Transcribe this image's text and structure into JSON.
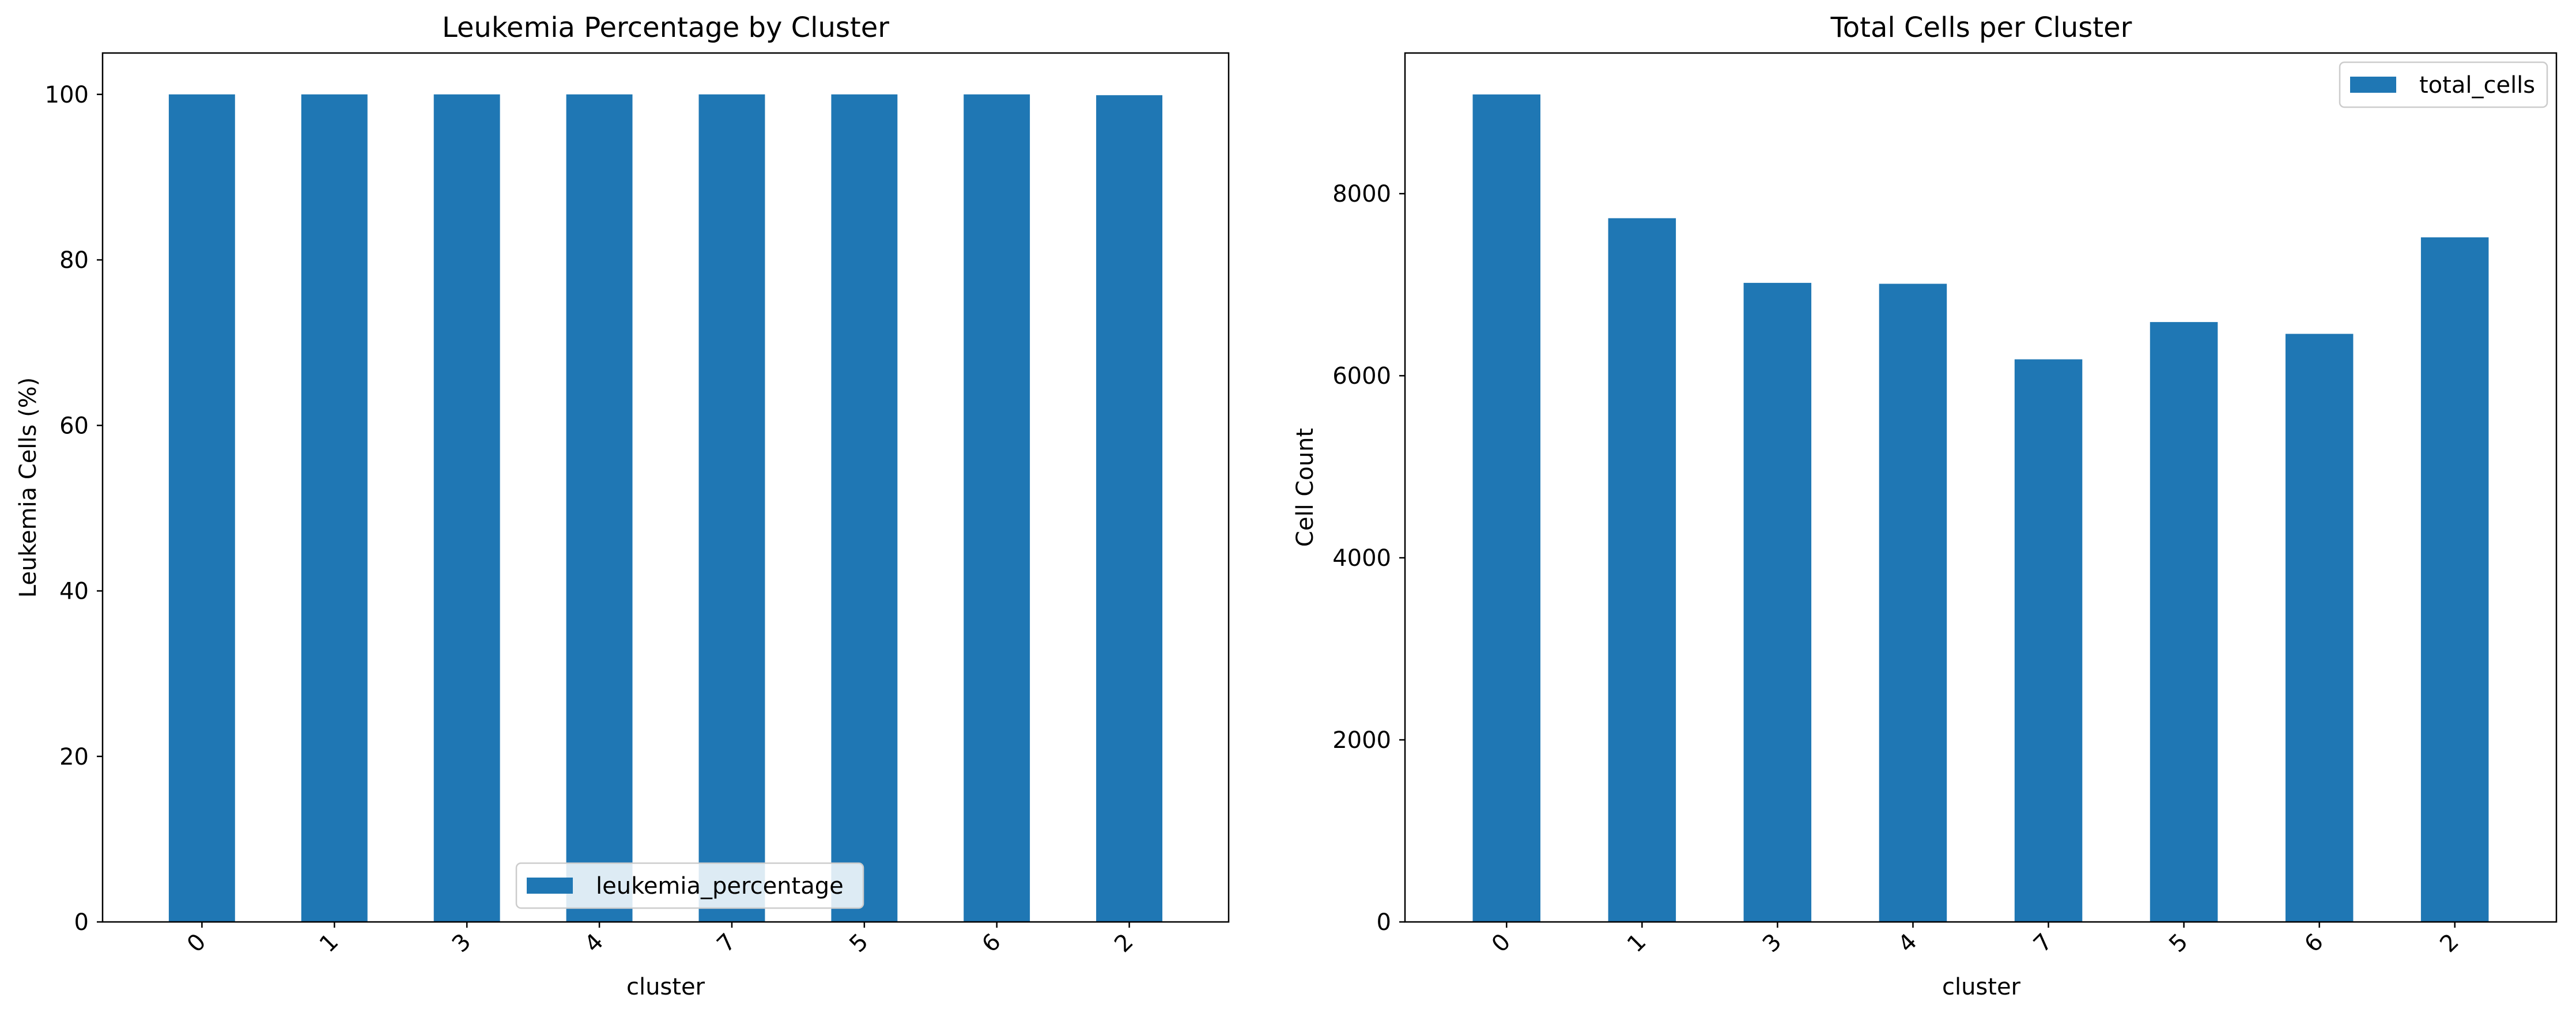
{
  "chart_data": [
    {
      "type": "bar",
      "title": "Leukemia Percentage by Cluster",
      "xlabel": "cluster",
      "ylabel": "Leukemia Cells (%)",
      "categories": [
        "0",
        "1",
        "3",
        "4",
        "7",
        "5",
        "6",
        "2"
      ],
      "series": [
        {
          "name": "leukemia_percentage",
          "values": [
            100,
            100,
            100,
            100,
            100,
            100,
            100,
            99.9
          ]
        }
      ],
      "ylim": [
        0,
        105
      ],
      "yticks": [
        0,
        20,
        40,
        60,
        80,
        100
      ],
      "legend": "lower center",
      "grid": false,
      "bar_color": "#1f77b4"
    },
    {
      "type": "bar",
      "title": "Total Cells per Cluster",
      "xlabel": "cluster",
      "ylabel": "Cell Count",
      "categories": [
        "0",
        "1",
        "3",
        "4",
        "7",
        "5",
        "6",
        "2"
      ],
      "series": [
        {
          "name": "total_cells",
          "values": [
            9090,
            7730,
            7020,
            7010,
            6180,
            6590,
            6460,
            7520
          ]
        }
      ],
      "ylim": [
        0,
        9545
      ],
      "yticks": [
        0,
        2000,
        4000,
        6000,
        8000
      ],
      "legend": "upper right",
      "grid": false,
      "bar_color": "#1f77b4"
    }
  ]
}
